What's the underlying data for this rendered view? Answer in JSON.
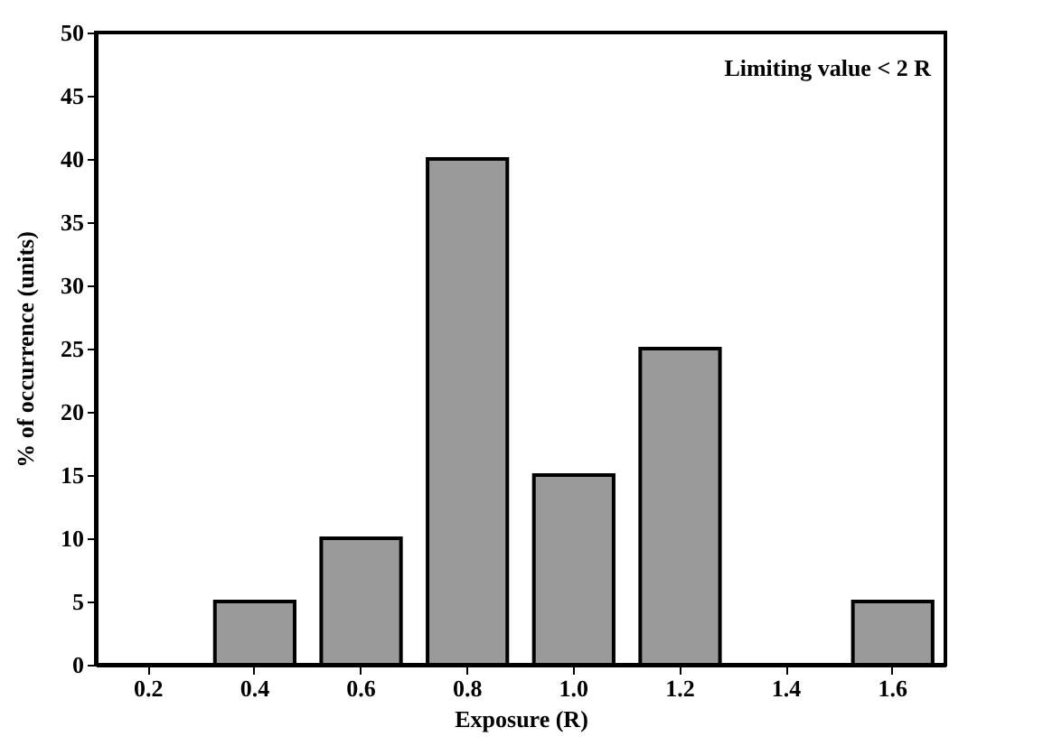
{
  "chart_data": {
    "type": "bar",
    "xlabel": "Exposure (R)",
    "ylabel": "% of occurrence (units)",
    "categories": [
      "0.2",
      "0.4",
      "0.6",
      "0.8",
      "1.0",
      "1.2",
      "1.4",
      "1.6"
    ],
    "values": [
      null,
      5,
      10,
      40,
      15,
      25,
      null,
      5
    ],
    "color": "#9a9a9a",
    "ylim": [
      0,
      50
    ],
    "yticks": [
      0,
      5,
      10,
      15,
      20,
      25,
      30,
      35,
      40,
      45,
      50
    ],
    "grid": false,
    "annotations": [
      "Limiting value < 2 R"
    ]
  }
}
